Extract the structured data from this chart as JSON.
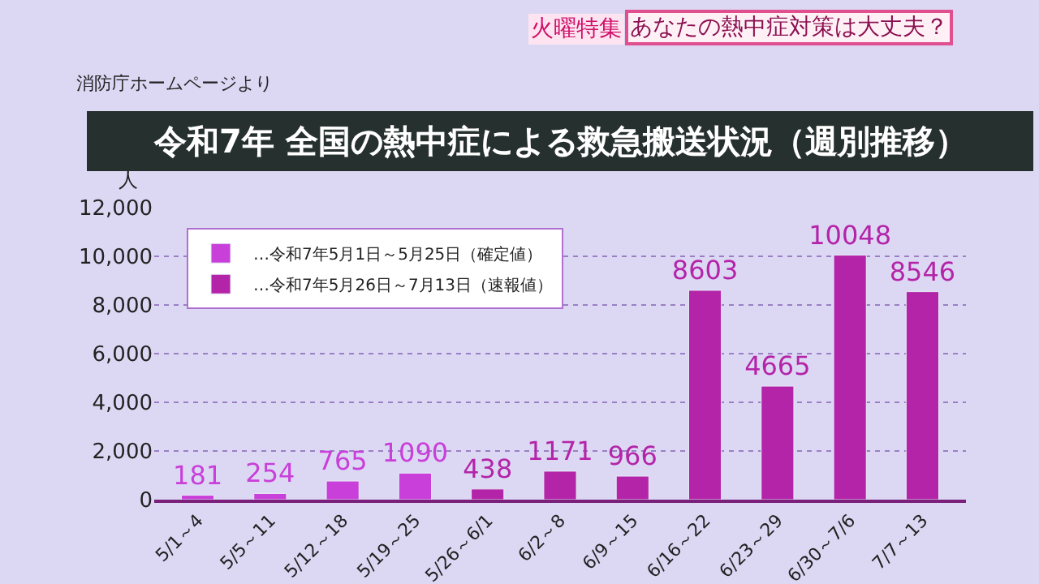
{
  "chart_data": {
    "type": "bar",
    "title": "令和7年 全国の熱中症による救急搬送状況（週別推移）",
    "ylabel": "人",
    "annotations": [
      "消防庁ホームページより",
      "火曜特集",
      "あなたの熱中症対策は大丈夫？"
    ],
    "categories": [
      "5/1～4",
      "5/5～11",
      "5/12～18",
      "5/19～25",
      "5/26～6/1",
      "6/2～8",
      "6/9～15",
      "6/16～22",
      "6/23～29",
      "6/30～7/6",
      "7/7～13"
    ],
    "series": [
      {
        "name": "…令和7年5月1日～5月25日（確定値）",
        "color": "#c93fd9",
        "values": [
          181,
          254,
          765,
          1090,
          null,
          null,
          null,
          null,
          null,
          null,
          null
        ]
      },
      {
        "name": "…令和7年5月26日～7月13日（速報値）",
        "color": "#b424a8",
        "values": [
          null,
          null,
          null,
          null,
          438,
          1171,
          966,
          8603,
          4665,
          10048,
          8546
        ]
      }
    ],
    "ylim": [
      0,
      12000
    ],
    "yticks": [
      0,
      {
        "value": 2000,
        "label": "2,000"
      },
      {
        "value": 4000,
        "label": "4,000"
      },
      {
        "value": 6000,
        "label": "6,000"
      },
      {
        "value": 8000,
        "label": "8,000"
      },
      {
        "value": 10000,
        "label": "10,000"
      },
      {
        "value": 12000,
        "label": "12,000"
      }
    ],
    "grid": "y",
    "legend": "top left",
    "data_labels": true
  }
}
